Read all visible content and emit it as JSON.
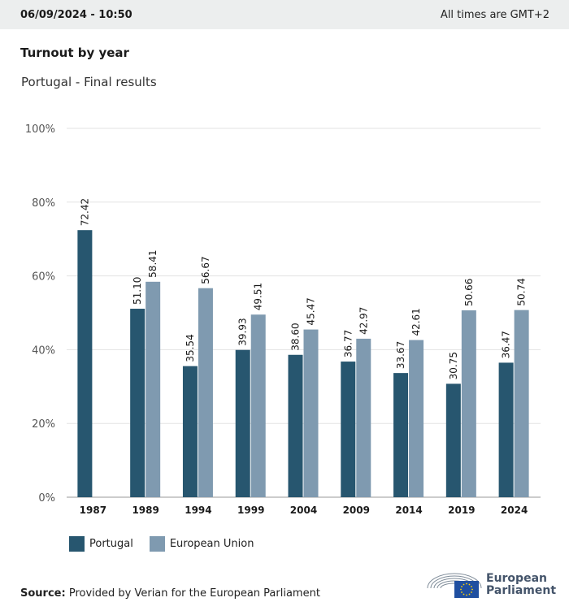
{
  "header": {
    "timestamp": "06/09/2024 - 10:50",
    "timezone_note": "All times are GMT+2"
  },
  "chart_title": "Turnout by year",
  "chart_subtitle": "Portugal - Final results",
  "colors": {
    "portugal": "#27566f",
    "eu": "#7f9ab0",
    "grid": "#e3e3e3",
    "axis": "#999999"
  },
  "chart_data": {
    "type": "bar",
    "title": "Turnout by year",
    "subtitle": "Portugal - Final results",
    "categories": [
      "1987",
      "1989",
      "1994",
      "1999",
      "2004",
      "2009",
      "2014",
      "2019",
      "2024"
    ],
    "series": [
      {
        "name": "Portugal",
        "values": [
          72.42,
          51.1,
          35.54,
          39.93,
          38.6,
          36.77,
          33.67,
          30.75,
          36.47
        ]
      },
      {
        "name": "European Union",
        "values": [
          null,
          58.41,
          56.67,
          49.51,
          45.47,
          42.97,
          42.61,
          50.66,
          50.74
        ]
      }
    ],
    "y_ticks": [
      "0%",
      "20%",
      "40%",
      "60%",
      "80%",
      "100%"
    ],
    "ylim": [
      0,
      100
    ],
    "grid": true,
    "legend_position": "bottom-left"
  },
  "legend": [
    {
      "label": "Portugal",
      "icon": "portugal-swatch"
    },
    {
      "label": "European Union",
      "icon": "eu-swatch"
    }
  ],
  "source": {
    "label": "Source:",
    "text": "Provided by Verian for the European Parliament"
  },
  "logo": {
    "line1": "European",
    "line2": "Parliament"
  }
}
